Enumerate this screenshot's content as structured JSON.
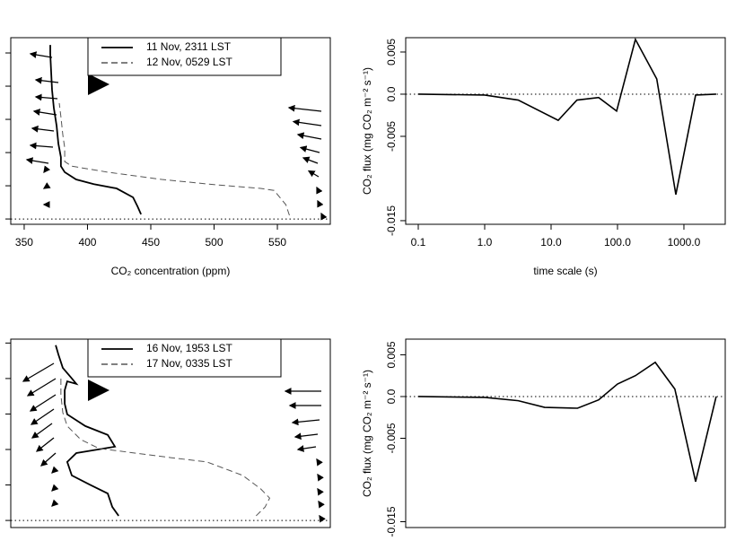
{
  "chart_data": [
    {
      "type": "profile",
      "xlabel": "CO₂ concentration (ppm)",
      "xlim": [
        339.4,
        591.8
      ],
      "xticks": [
        350,
        400,
        450,
        500,
        550
      ],
      "ylim": [
        -0.16,
        5.46
      ],
      "yticks": [
        0,
        1,
        2,
        3,
        4,
        5
      ],
      "ytick_labels": false,
      "ref_y": 0,
      "legend": "top",
      "series": [
        {
          "name": "11 Nov, 2311 LST",
          "color": "#000000",
          "dash": false,
          "x": [
            442.3,
            439.5,
            436,
            423,
            405,
            391,
            382,
            379,
            379,
            377,
            375.6,
            373.4,
            372,
            371.3,
            370.6,
            370.6
          ],
          "y": [
            0.14,
            0.38,
            0.65,
            0.92,
            1.05,
            1.19,
            1.41,
            1.59,
            1.86,
            2.27,
            2.81,
            3.35,
            3.89,
            4.43,
            4.97,
            5.24
          ]
        },
        {
          "name": "12 Nov, 0529 LST",
          "color": "#555555",
          "dash": true,
          "x": [
            559.5,
            556.7,
            547.4,
            536.8,
            501.3,
            458.7,
            416,
            387.6,
            382,
            382,
            380.5,
            379,
            377.7
          ],
          "y": [
            0.11,
            0.43,
            0.86,
            0.92,
            1.03,
            1.19,
            1.41,
            1.59,
            1.73,
            2.14,
            2.54,
            3.08,
            3.49
          ]
        }
      ]
    },
    {
      "type": "line",
      "xlabel": "time scale (s)",
      "ylabel": "CO₂ flux (mg CO₂ m⁻² s⁻¹)",
      "log_x": true,
      "xlim": [
        0.0647,
        4188
      ],
      "xticks": [
        0.1,
        {
          "value": 1,
          "label": "1.0"
        },
        {
          "value": 10,
          "label": "10.0"
        },
        {
          "value": 100,
          "label": "100.0"
        },
        {
          "value": 1000,
          "label": "1000.0"
        }
      ],
      "ylim": [
        -0.01543,
        0.0067
      ],
      "yticks": [
        0.005,
        {
          "value": 0,
          "label": "0.0"
        },
        -0.005,
        -0.015
      ],
      "ref_y": 0,
      "color": "#000000",
      "x": [
        0.1,
        1,
        3.2,
        12.8,
        24.5,
        52,
        97,
        186,
        390,
        756,
        1500,
        3060
      ],
      "values": [
        0,
        -0.0001,
        -0.0007,
        -0.0031,
        -0.0007,
        -0.0004,
        -0.002,
        0.0065,
        0.0018,
        -0.0119,
        -0.0001,
        0
      ]
    },
    {
      "type": "profile",
      "xlim": [
        339.4,
        591.8
      ],
      "ylim": [
        -0.2,
        5.11
      ],
      "yticks": [
        0,
        1,
        2,
        3,
        4,
        5
      ],
      "ytick_labels": false,
      "ref_y": 0,
      "legend": "top",
      "series": [
        {
          "name": "16 Nov, 1953 LST",
          "color": "#000000",
          "dash": false,
          "x": [
            424.6,
            419.6,
            416,
            401.8,
            387.6,
            384,
            391.2,
            421.7,
            416,
            398.3,
            384,
            382,
            382,
            384,
            391.2,
            386.5,
            380.5,
            377,
            374.9
          ],
          "y": [
            0.13,
            0.38,
            0.76,
            1.01,
            1.27,
            1.65,
            1.9,
            2.08,
            2.41,
            2.66,
            2.99,
            3.29,
            3.67,
            3.92,
            3.85,
            4.05,
            4.3,
            4.68,
            4.94
          ]
        },
        {
          "name": "17 Nov, 0335 LST",
          "color": "#555555",
          "dash": true,
          "x": [
            533.2,
            540.3,
            543.9,
            536.8,
            522.6,
            494.2,
            465.8,
            437.4,
            409,
            394.7,
            384,
            380.5,
            379,
            379
          ],
          "y": [
            0.13,
            0.38,
            0.63,
            0.89,
            1.27,
            1.65,
            1.77,
            1.9,
            2.03,
            2.28,
            2.66,
            3.04,
            3.54,
            4.05
          ]
        }
      ]
    },
    {
      "type": "line",
      "ylabel": "CO₂ flux (mg CO₂ m⁻² s⁻¹)",
      "log_x": true,
      "xlim": [
        0.0647,
        4188
      ],
      "ylim": [
        -0.0157,
        0.00688
      ],
      "yticks": [
        0.005,
        {
          "value": 0,
          "label": "0.0"
        },
        -0.005,
        -0.015
      ],
      "ref_y": 0,
      "color": "#000000",
      "x": [
        0.1,
        1,
        3.2,
        8,
        25,
        52,
        100,
        186,
        370,
        730,
        1500,
        3060
      ],
      "values": [
        0,
        -0.0001,
        -0.0005,
        -0.0013,
        -0.0014,
        -0.0004,
        0.0015,
        0.0025,
        0.0041,
        0.0009,
        -0.0102,
        0
      ]
    }
  ]
}
